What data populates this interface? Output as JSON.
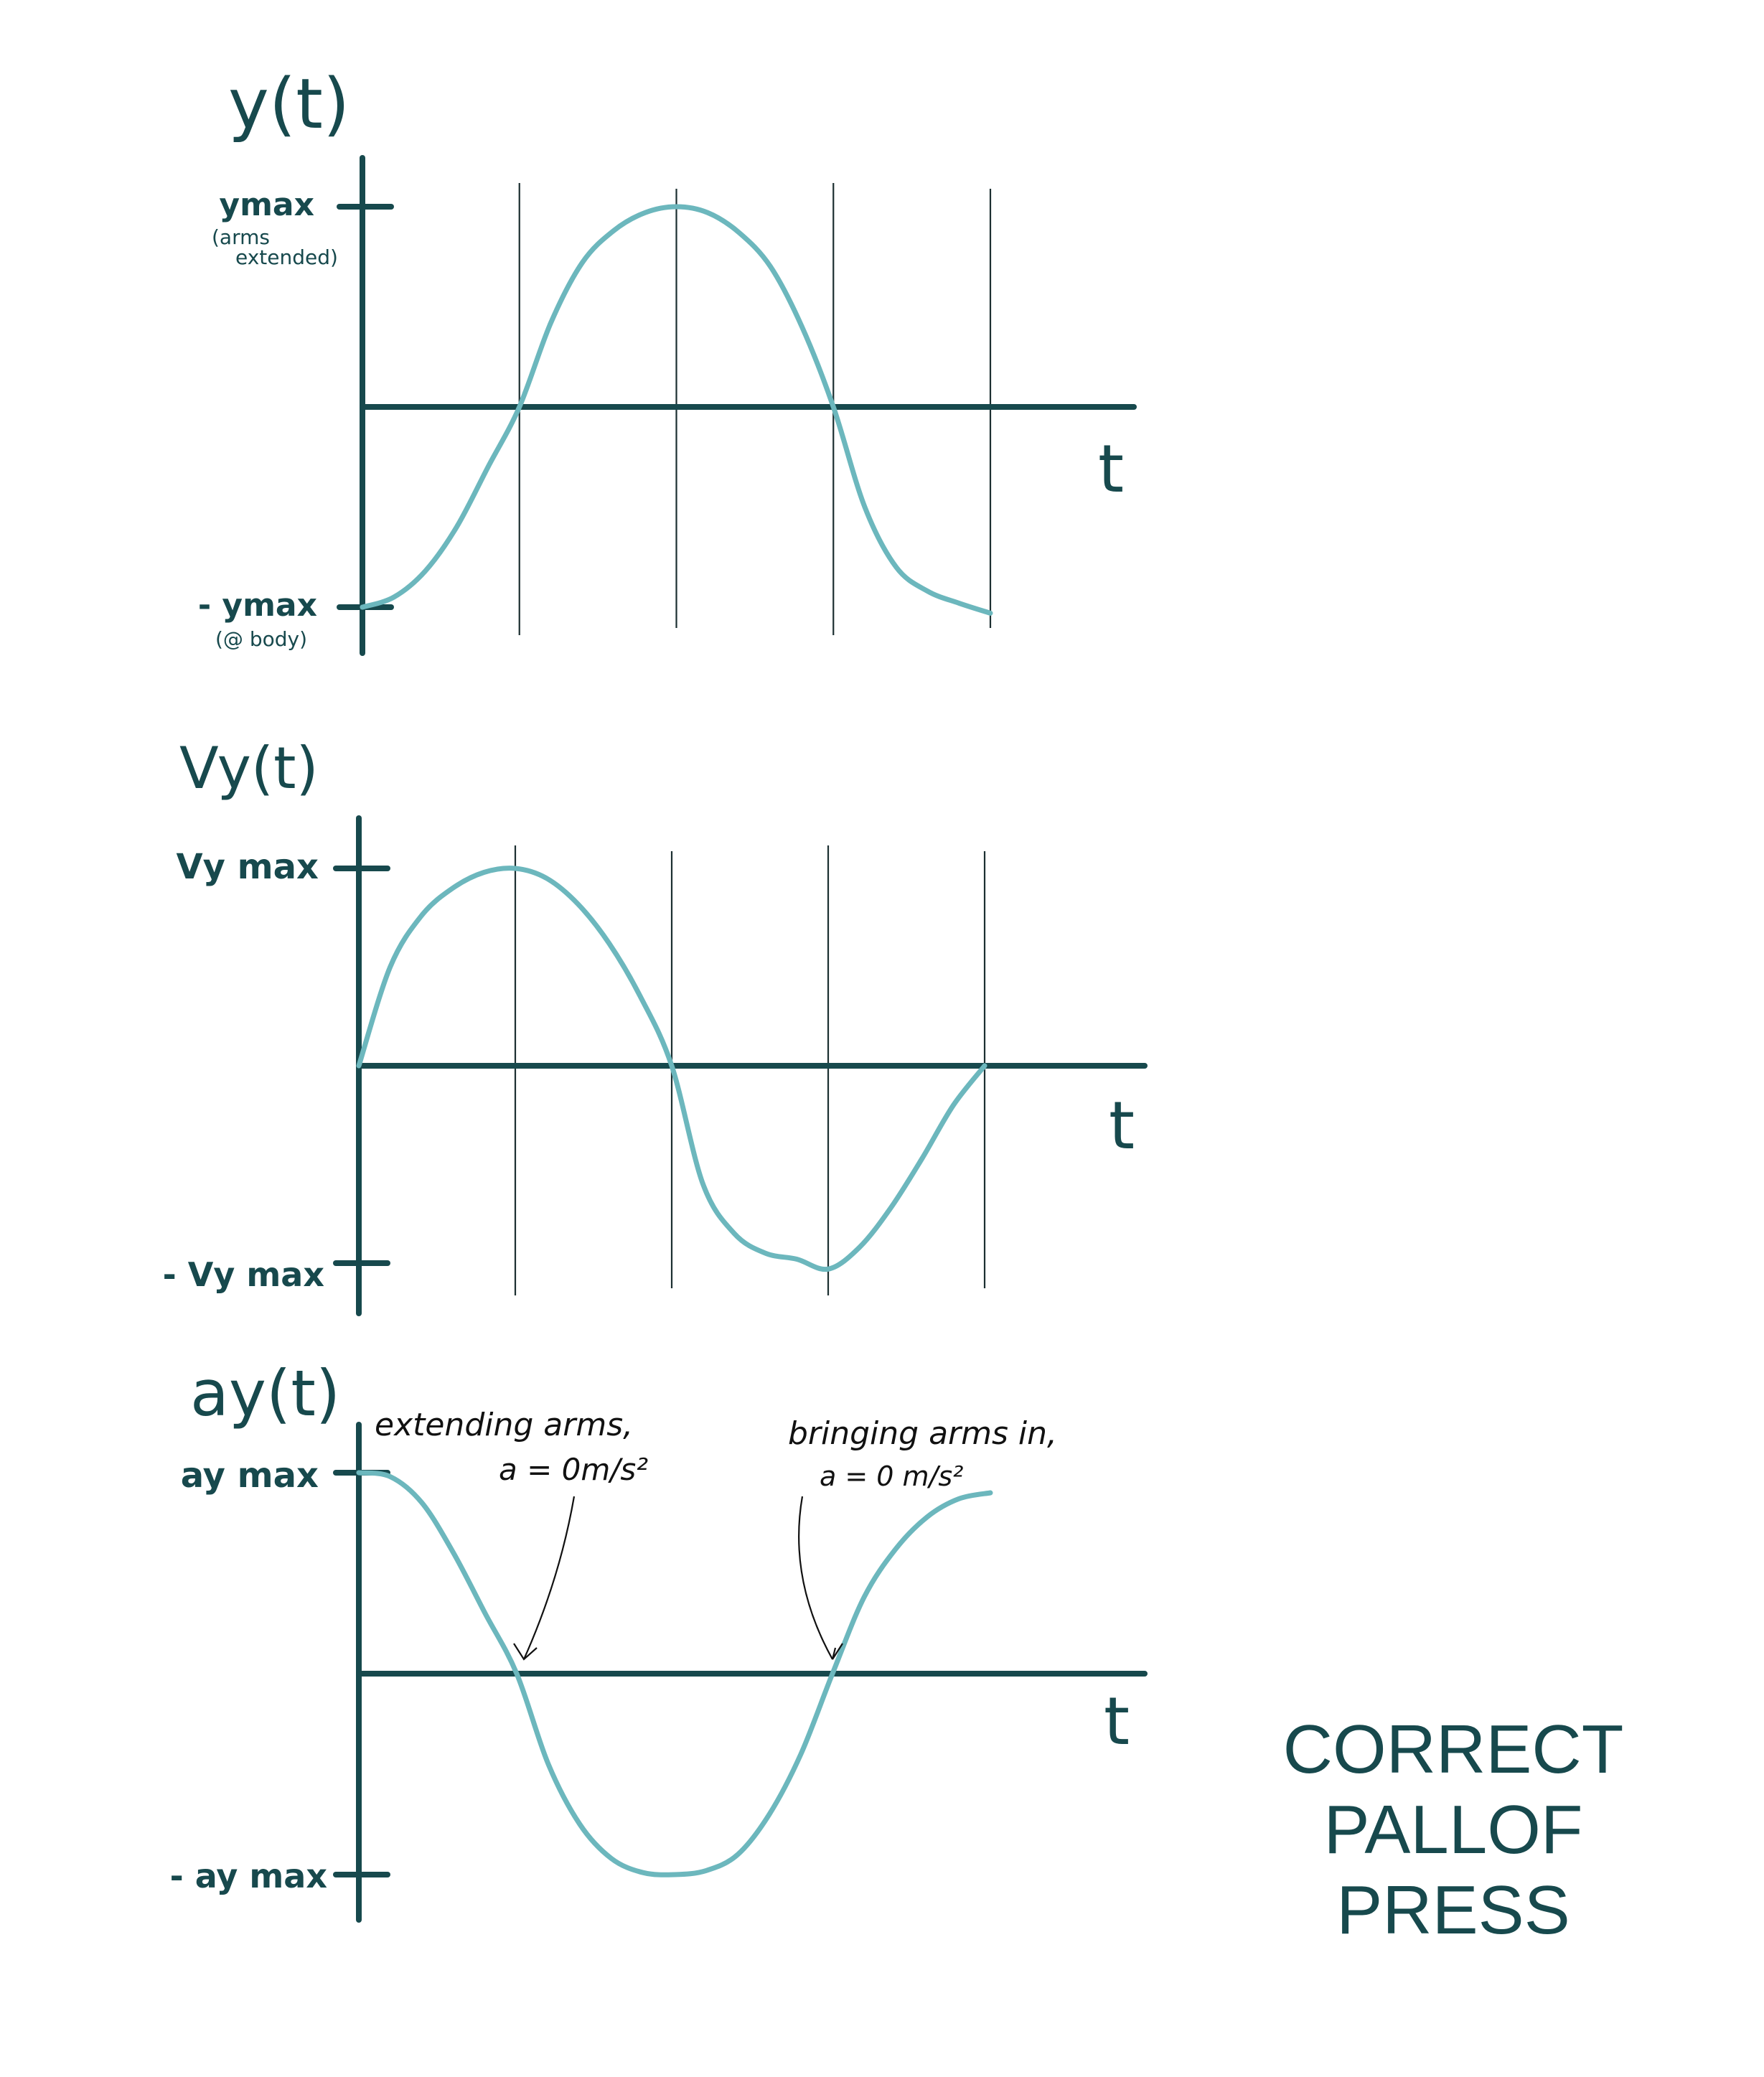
{
  "colors": {
    "axis": "#17494d",
    "curve": "#6cb7bd",
    "gridline": "#1c2f31",
    "annotation": "#111111",
    "background": "#ffffff"
  },
  "title_lines": [
    "CORRECT",
    "PALLOF",
    "PRESS"
  ],
  "chart_data": [
    {
      "type": "line",
      "title": "",
      "ylabel": "y(t)",
      "xlabel": "t",
      "yticks": [
        {
          "value": 1,
          "label": "ymax",
          "sublabel": [
            "(arms",
            "extended)"
          ]
        },
        {
          "value": -1,
          "label": "- ymax",
          "sublabel": [
            "(@ body)"
          ]
        }
      ],
      "vertical_lines_x": [
        0.25,
        0.5,
        0.75,
        1.0
      ],
      "ylim": [
        -1,
        1
      ],
      "xlim": [
        0,
        1
      ],
      "series": [
        {
          "x": [
            0,
            0.05,
            0.1,
            0.15,
            0.2,
            0.25,
            0.3,
            0.35,
            0.4,
            0.45,
            0.5,
            0.55,
            0.6,
            0.65,
            0.7,
            0.75,
            0.8,
            0.85,
            0.9,
            0.95,
            1.0
          ],
          "y": [
            -1,
            -0.95,
            -0.82,
            -0.6,
            -0.3,
            0,
            0.42,
            0.72,
            0.88,
            0.97,
            1.0,
            0.97,
            0.87,
            0.7,
            0.4,
            0,
            -0.5,
            -0.8,
            -0.92,
            -0.98,
            -1.03
          ]
        }
      ]
    },
    {
      "type": "line",
      "title": "",
      "ylabel": "Vy(t)",
      "xlabel": "t",
      "yticks": [
        {
          "value": 1,
          "label": "Vy max",
          "sublabel": []
        },
        {
          "value": -1,
          "label": "- Vy max",
          "sublabel": []
        }
      ],
      "vertical_lines_x": [
        0.25,
        0.5,
        0.75,
        1.0
      ],
      "ylim": [
        -1,
        1
      ],
      "xlim": [
        0,
        1
      ],
      "series": [
        {
          "x": [
            0,
            0.05,
            0.1,
            0.15,
            0.2,
            0.25,
            0.3,
            0.35,
            0.4,
            0.45,
            0.5,
            0.55,
            0.6,
            0.65,
            0.7,
            0.75,
            0.8,
            0.85,
            0.9,
            0.95,
            1.0
          ],
          "y": [
            0,
            0.5,
            0.76,
            0.9,
            0.98,
            1.0,
            0.95,
            0.82,
            0.62,
            0.35,
            0,
            -0.6,
            -0.85,
            -0.95,
            -0.98,
            -1.03,
            -0.92,
            -0.72,
            -0.47,
            -0.2,
            0
          ]
        }
      ]
    },
    {
      "type": "line",
      "title": "",
      "ylabel": "ay(t)",
      "xlabel": "t",
      "yticks": [
        {
          "value": 1,
          "label": "ay max",
          "sublabel": []
        },
        {
          "value": -1,
          "label": "- ay max",
          "sublabel": []
        }
      ],
      "vertical_lines_x": [],
      "ylim": [
        -1,
        1
      ],
      "xlim": [
        0,
        1
      ],
      "series": [
        {
          "x": [
            0,
            0.05,
            0.1,
            0.15,
            0.2,
            0.25,
            0.3,
            0.35,
            0.4,
            0.45,
            0.5,
            0.55,
            0.6,
            0.65,
            0.7,
            0.75,
            0.8,
            0.85,
            0.9,
            0.95,
            1.0
          ],
          "y": [
            1.0,
            0.98,
            0.85,
            0.6,
            0.3,
            0,
            -0.45,
            -0.75,
            -0.92,
            -0.99,
            -1.0,
            -0.98,
            -0.9,
            -0.7,
            -0.4,
            0,
            0.38,
            0.62,
            0.78,
            0.87,
            0.9
          ]
        }
      ],
      "annotations": [
        {
          "text": [
            "extending arms,",
            "a = 0m/s²"
          ],
          "points_to_x": 0.25
        },
        {
          "text": [
            "bringing arms in,",
            "a = 0 m/s²"
          ],
          "points_to_x": 0.75
        }
      ]
    }
  ]
}
